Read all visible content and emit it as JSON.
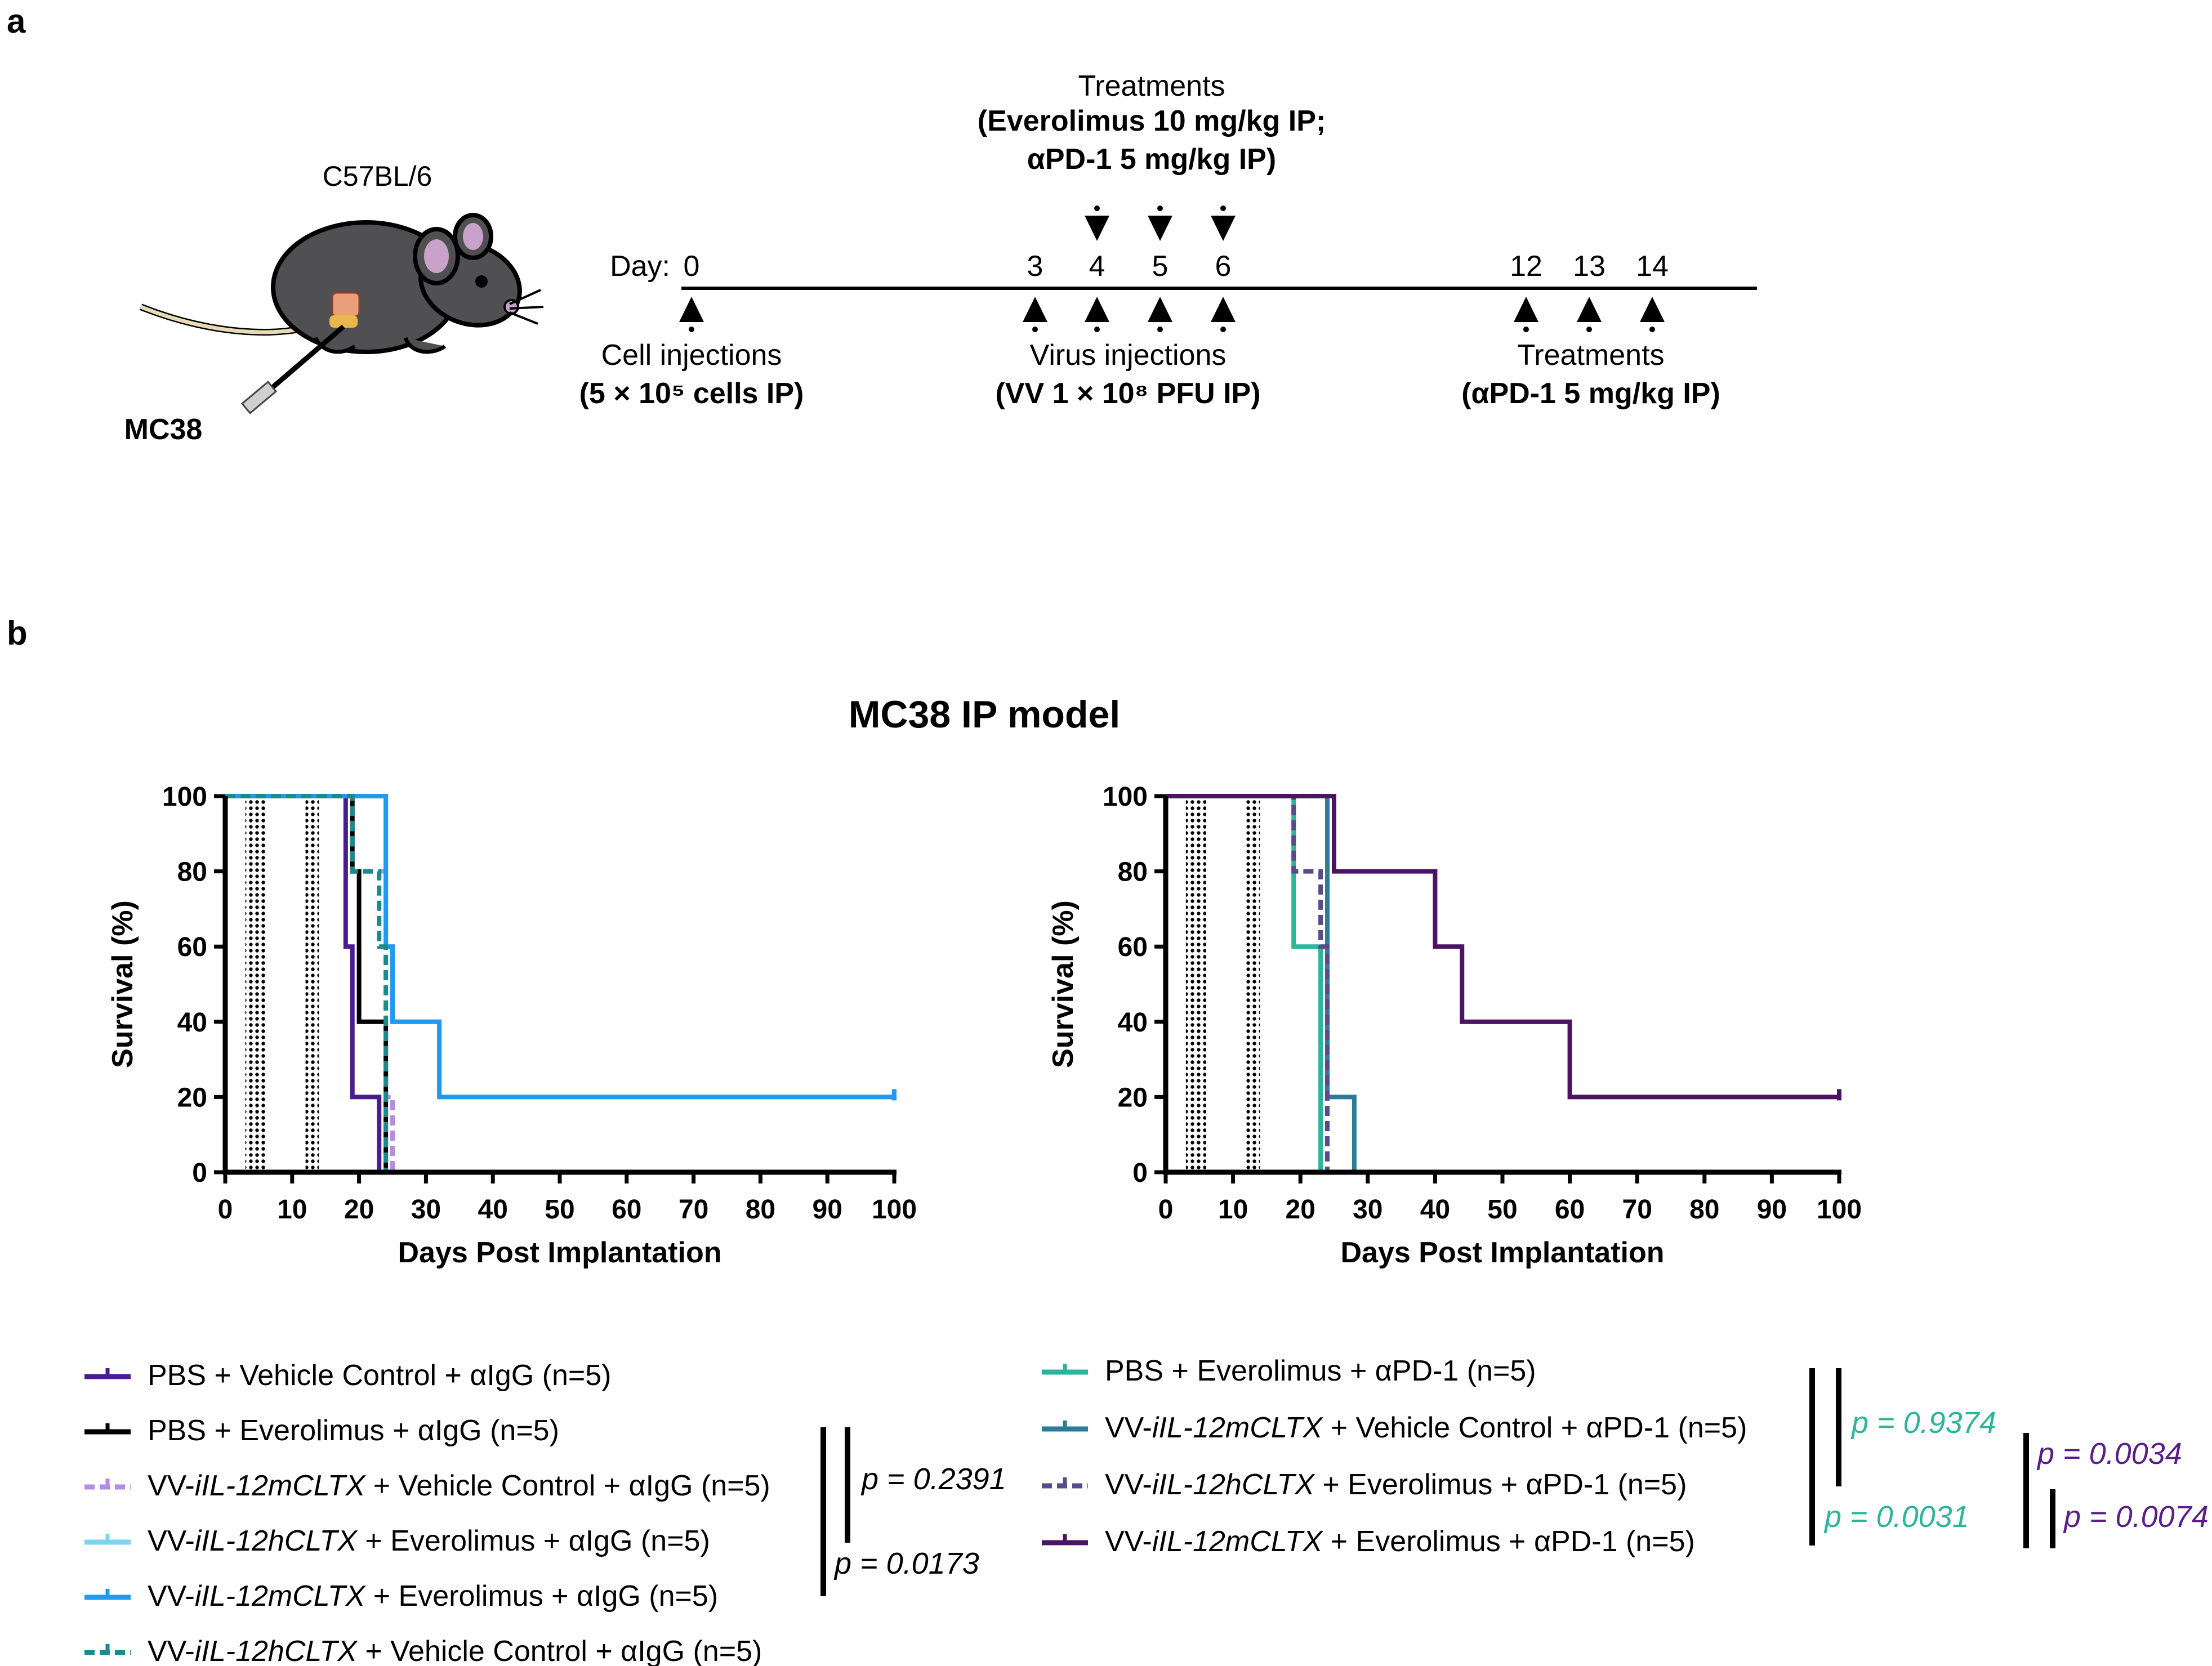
{
  "panel_a": {
    "label": "a",
    "strain": "C57BL/6",
    "tumor": "MC38",
    "day_label": "Day:",
    "days": [
      "0",
      "3",
      "4",
      "5",
      "6",
      "12",
      "13",
      "14"
    ],
    "treat_top_title": "Treatments",
    "treat_top_line1": "(Everolimus 10 mg/kg IP;",
    "treat_top_line2": "αPD-1 5 mg/kg IP)",
    "cell_title": "Cell injections",
    "cell_detail": "(5 × 10⁵ cells IP)",
    "virus_title": "Virus injections",
    "virus_detail": "(VV 1 × 10⁸ PFU IP)",
    "treat_bottom_title": "Treatments",
    "treat_bottom_detail": "(αPD-1 5 mg/kg IP)"
  },
  "panel_b": {
    "label": "b",
    "title": "MC38 IP model"
  },
  "colors": {
    "purple": "#4a1d8c",
    "black": "#000000",
    "lavender": "#b48be6",
    "lightblue": "#7fd3ee",
    "blue": "#1e9bf0",
    "teal_dark": "#1a8a8a",
    "teal_green": "#2ab69a",
    "steel_teal": "#2a7d94",
    "slate_purple": "#5a4a8c",
    "dark_purple": "#4a1463",
    "p_green": "#2ab69a",
    "p_purple": "#5a1d8c"
  },
  "chart_data": [
    {
      "type": "line",
      "step": true,
      "xlabel": "Days Post Implantation",
      "ylabel": "Survival (%)",
      "xlim": [
        0,
        100
      ],
      "ylim": [
        0,
        100
      ],
      "xticks": [
        0,
        10,
        20,
        30,
        40,
        50,
        60,
        70,
        80,
        90,
        100
      ],
      "yticks": [
        0,
        20,
        40,
        60,
        80,
        100
      ],
      "dotted_bands": [
        [
          3,
          6
        ],
        [
          12,
          14
        ]
      ],
      "series": [
        {
          "name": "PBS + Vehicle Control + αIgG (n=5)",
          "color": "#4a1d8c",
          "dash": false,
          "points": [
            [
              0,
              100
            ],
            [
              18,
              100
            ],
            [
              18,
              60
            ],
            [
              19,
              60
            ],
            [
              19,
              20
            ],
            [
              23,
              20
            ],
            [
              23,
              0
            ]
          ]
        },
        {
          "name": "PBS + Everolimus + αIgG (n=5)",
          "color": "#000000",
          "dash": false,
          "points": [
            [
              0,
              100
            ],
            [
              19,
              100
            ],
            [
              19,
              80
            ],
            [
              20,
              80
            ],
            [
              20,
              40
            ],
            [
              24,
              40
            ],
            [
              24,
              0
            ]
          ]
        },
        {
          "name": "VV-iIL-12mCLTX + Vehicle Control + αIgG (n=5)",
          "color": "#b48be6",
          "dash": true,
          "points": [
            [
              0,
              100
            ],
            [
              19,
              100
            ],
            [
              19,
              80
            ],
            [
              24,
              80
            ],
            [
              24,
              20
            ],
            [
              25,
              20
            ],
            [
              25,
              0
            ]
          ]
        },
        {
          "name": "VV-iIL-12hCLTX + Everolimus + αIgG (n=5)",
          "color": "#7fd3ee",
          "dash": false,
          "points": [
            [
              0,
              100
            ],
            [
              24,
              100
            ],
            [
              24,
              60
            ],
            [
              25,
              60
            ],
            [
              25,
              40
            ],
            [
              32,
              40
            ],
            [
              32,
              20
            ],
            [
              100,
              20
            ]
          ]
        },
        {
          "name": "VV-iIL-12mCLTX + Everolimus + αIgG (n=5)",
          "color": "#1e9bf0",
          "dash": false,
          "points": [
            [
              0,
              100
            ],
            [
              24,
              100
            ],
            [
              24,
              60
            ],
            [
              25,
              60
            ],
            [
              25,
              40
            ],
            [
              32,
              40
            ],
            [
              32,
              20
            ],
            [
              100,
              20
            ]
          ]
        },
        {
          "name": "VV-iIL-12hCLTX + Vehicle Control + αIgG (n=5)",
          "color": "#1a8a8a",
          "dash": true,
          "points": [
            [
              0,
              100
            ],
            [
              19,
              100
            ],
            [
              19,
              80
            ],
            [
              23,
              80
            ],
            [
              23,
              60
            ],
            [
              24,
              60
            ],
            [
              24,
              0
            ]
          ]
        }
      ],
      "legend": [
        {
          "text": "PBS + Vehicle Control + αIgG (n=5)",
          "color": "#4a1d8c",
          "dash": false,
          "pre": "PBS + Vehicle Control + αIgG (n=5)",
          "italic": "",
          "post": ""
        },
        {
          "text": "PBS + Everolimus + αIgG (n=5)",
          "color": "#000000",
          "dash": false,
          "pre": "PBS + Everolimus + αIgG (n=5)",
          "italic": "",
          "post": ""
        },
        {
          "text": "VV-iIL-12mCLTX + Vehicle Control + αIgG (n=5)",
          "color": "#b48be6",
          "dash": true,
          "pre": "VV-",
          "italic": "iIL-12mCLTX",
          "post": " + Vehicle Control + αIgG (n=5)"
        },
        {
          "text": "VV-iIL-12hCLTX + Everolimus + αIgG (n=5)",
          "color": "#7fd3ee",
          "dash": false,
          "pre": "VV-",
          "italic": "iIL-12hCLTX",
          "post": " + Everolimus + αIgG (n=5)"
        },
        {
          "text": "VV-iIL-12mCLTX + Everolimus + αIgG (n=5)",
          "color": "#1e9bf0",
          "dash": false,
          "pre": "VV-",
          "italic": "iIL-12mCLTX",
          "post": " + Everolimus + αIgG (n=5)"
        },
        {
          "text": "VV-iIL-12hCLTX + Vehicle Control + αIgG (n=5)",
          "color": "#1a8a8a",
          "dash": true,
          "pre": "VV-",
          "italic": "iIL-12hCLTX",
          "post": " + Vehicle Control + αIgG (n=5)"
        }
      ],
      "pvalues": [
        "p = 0.2391",
        "p = 0.0173"
      ]
    },
    {
      "type": "line",
      "step": true,
      "xlabel": "Days Post Implantation",
      "ylabel": "Survival (%)",
      "xlim": [
        0,
        100
      ],
      "ylim": [
        0,
        100
      ],
      "xticks": [
        0,
        10,
        20,
        30,
        40,
        50,
        60,
        70,
        80,
        90,
        100
      ],
      "yticks": [
        0,
        20,
        40,
        60,
        80,
        100
      ],
      "dotted_bands": [
        [
          3,
          6
        ],
        [
          12,
          14
        ]
      ],
      "series": [
        {
          "name": "PBS + Everolimus + αPD-1 (n=5)",
          "color": "#2ab69a",
          "dash": false,
          "points": [
            [
              0,
              100
            ],
            [
              19,
              100
            ],
            [
              19,
              60
            ],
            [
              23,
              60
            ],
            [
              23,
              0
            ]
          ]
        },
        {
          "name": "VV-iIL-12mCLTX + Vehicle Control + αPD-1 (n=5)",
          "color": "#2a7d94",
          "dash": false,
          "points": [
            [
              0,
              100
            ],
            [
              24,
              100
            ],
            [
              24,
              20
            ],
            [
              28,
              20
            ],
            [
              28,
              0
            ]
          ]
        },
        {
          "name": "VV-iIL-12hCLTX + Everolimus + αPD-1 (n=5)",
          "color": "#5a4a8c",
          "dash": true,
          "points": [
            [
              0,
              100
            ],
            [
              19,
              100
            ],
            [
              19,
              80
            ],
            [
              23,
              80
            ],
            [
              23,
              60
            ],
            [
              24,
              60
            ],
            [
              24,
              0
            ]
          ]
        },
        {
          "name": "VV-iIL-12mCLTX + Everolimus + αPD-1 (n=5)",
          "color": "#4a1463",
          "dash": false,
          "points": [
            [
              0,
              100
            ],
            [
              25,
              100
            ],
            [
              25,
              80
            ],
            [
              40,
              80
            ],
            [
              40,
              60
            ],
            [
              44,
              60
            ],
            [
              44,
              40
            ],
            [
              60,
              40
            ],
            [
              60,
              20
            ],
            [
              100,
              20
            ]
          ]
        }
      ],
      "legend": [
        {
          "text": "PBS + Everolimus + αPD-1 (n=5)",
          "color": "#2ab69a",
          "dash": false,
          "pre": "PBS + Everolimus + αPD-1 (n=5)",
          "italic": "",
          "post": ""
        },
        {
          "text": "VV-iIL-12mCLTX + Vehicle Control + αPD-1 (n=5)",
          "color": "#2a7d94",
          "dash": false,
          "pre": "VV-",
          "italic": "iIL-12mCLTX",
          "post": " + Vehicle Control + αPD-1 (n=5)"
        },
        {
          "text": "VV-iIL-12hCLTX + Everolimus + αPD-1 (n=5)",
          "color": "#5a4a8c",
          "dash": true,
          "pre": "VV-",
          "italic": "iIL-12hCLTX",
          "post": " + Everolimus + αPD-1 (n=5)"
        },
        {
          "text": "VV-iIL-12mCLTX + Everolimus + αPD-1 (n=5)",
          "color": "#4a1463",
          "dash": false,
          "pre": "VV-",
          "italic": "iIL-12mCLTX",
          "post": " + Everolimus + αPD-1 (n=5)"
        }
      ],
      "pvalues": [
        "p = 0.9374",
        "p = 0.0031",
        "p = 0.0034",
        "p = 0.0074"
      ]
    }
  ]
}
